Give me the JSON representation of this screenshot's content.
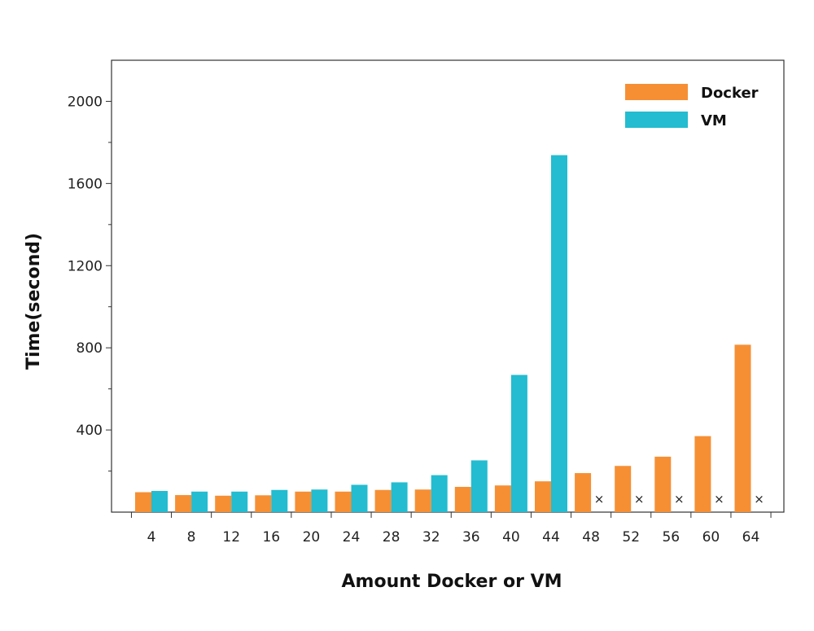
{
  "chart_data": {
    "type": "bar",
    "title": "",
    "xlabel": "Amount Docker or VM",
    "ylabel": "Time(second)",
    "categories": [
      "4",
      "8",
      "12",
      "16",
      "20",
      "24",
      "28",
      "32",
      "36",
      "40",
      "44",
      "48",
      "52",
      "56",
      "60",
      "64"
    ],
    "series": [
      {
        "name": "Docker",
        "color": "#F68F34",
        "values": [
          97,
          83,
          80,
          82,
          100,
          100,
          108,
          110,
          123,
          130,
          150,
          190,
          225,
          270,
          370,
          815
        ]
      },
      {
        "name": "VM",
        "color": "#23BCD0",
        "values": [
          103,
          100,
          100,
          108,
          110,
          133,
          145,
          180,
          252,
          668,
          1738,
          null,
          null,
          null,
          null,
          null
        ]
      }
    ],
    "missing_marker": "×",
    "ylim": [
      0,
      2200
    ],
    "yticks": [
      400,
      800,
      1200,
      1600,
      2000
    ],
    "ytick_labels": [
      "400",
      "800",
      "1200",
      "1600",
      "2000"
    ],
    "grid": false,
    "legend_position": "top-right"
  }
}
